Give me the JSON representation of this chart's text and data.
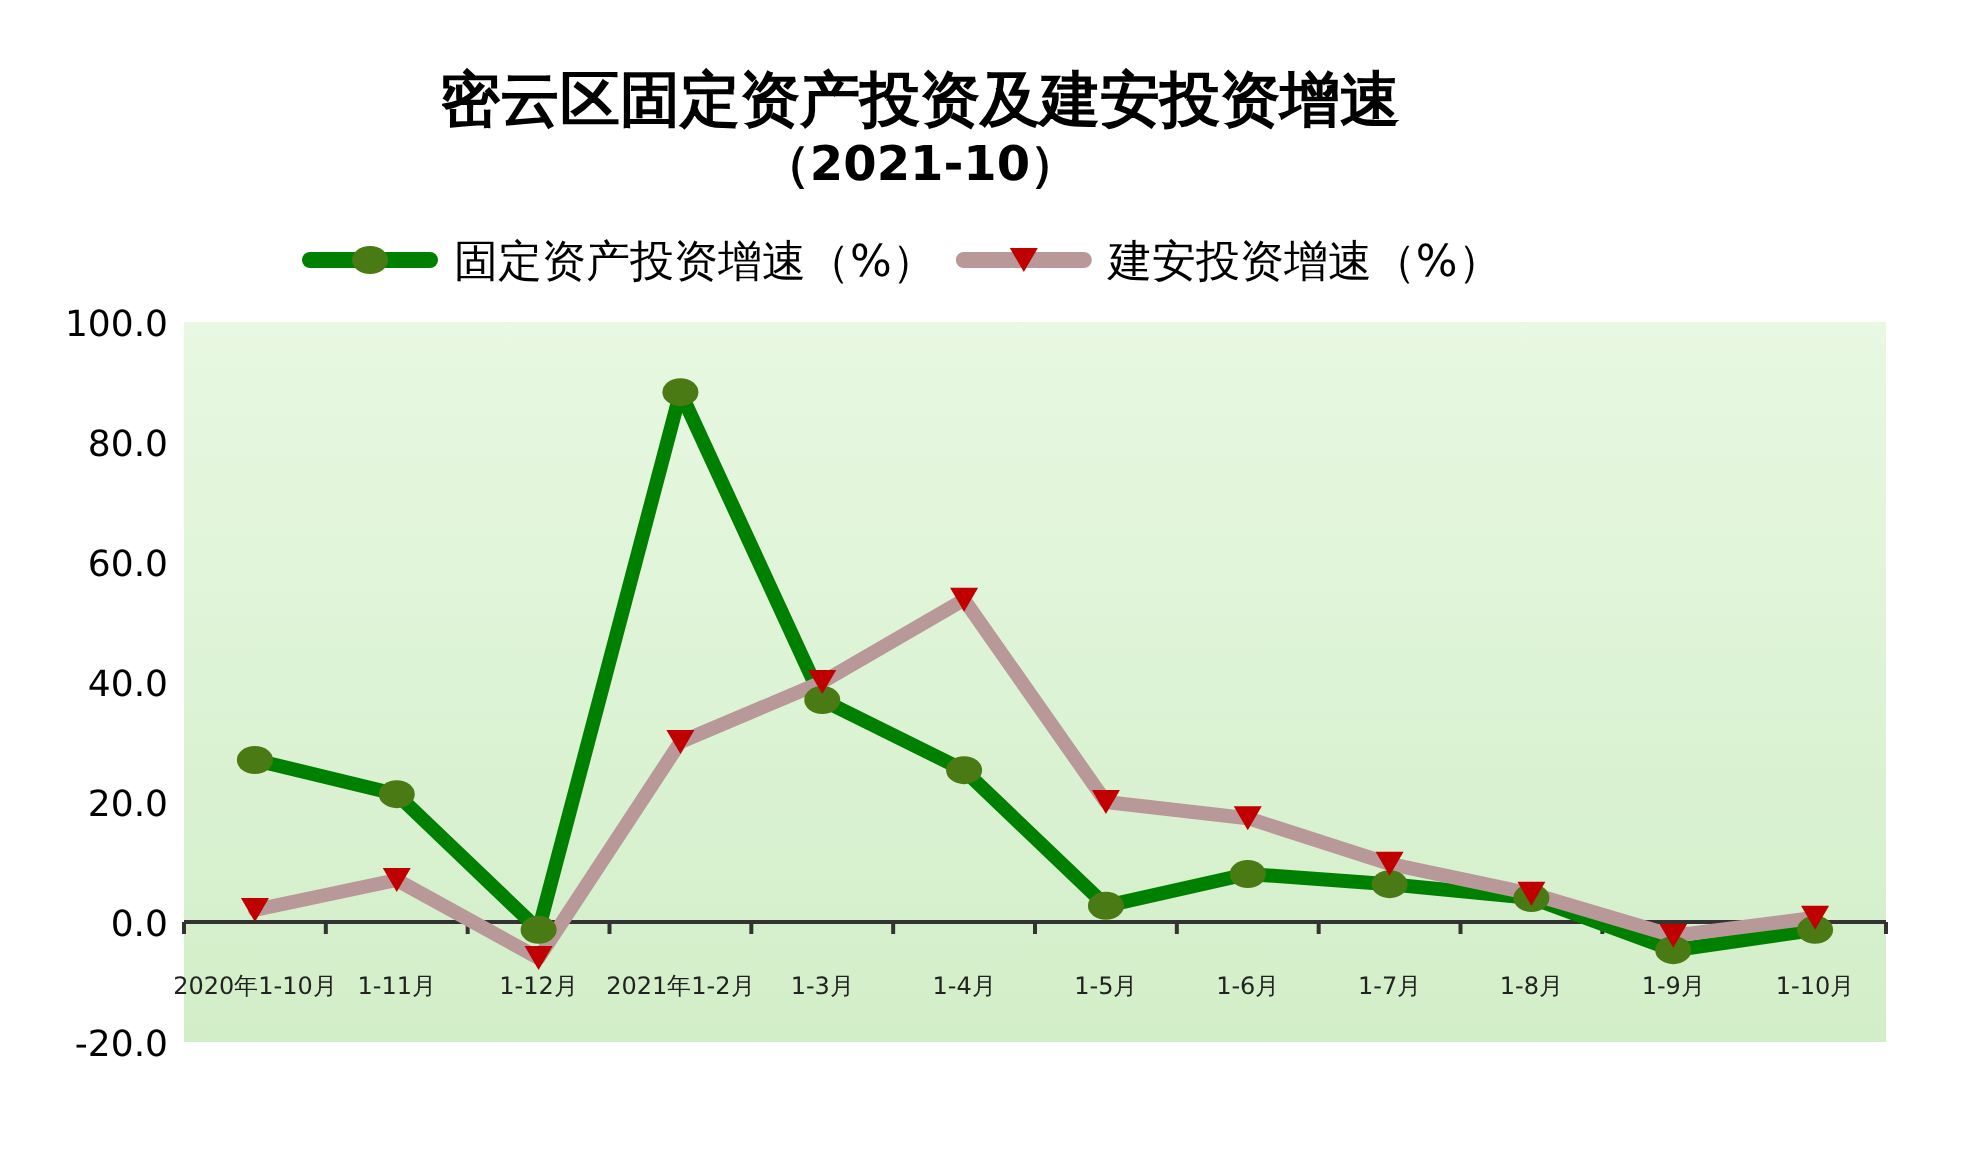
{
  "chart_data": {
    "type": "line",
    "title": "密云区固定资产投资及建安投资增速",
    "subtitle": "（2021-10）",
    "categories": [
      "2020年1-10月",
      "1-11月",
      "1-12月",
      "2021年1-2月",
      "1-3月",
      "1-4月",
      "1-5月",
      "1-6月",
      "1-7月",
      "1-8月",
      "1-9月",
      "1-10月"
    ],
    "series": [
      {
        "name": "固定资产投资增速（%）",
        "color": "#008000",
        "marker": "circle",
        "values": [
          27.0,
          21.3,
          -1.3,
          88.3,
          37.0,
          25.3,
          2.7,
          8.0,
          6.3,
          4.0,
          -4.7,
          -1.3
        ]
      },
      {
        "name": "建安投资增速（%）",
        "color": "#b89898",
        "marker": "triangle",
        "values": [
          2.0,
          7.0,
          -6.0,
          30.0,
          40.0,
          53.7,
          20.0,
          17.3,
          9.7,
          4.7,
          -2.3,
          0.7
        ]
      }
    ],
    "ylim": [
      -20,
      100
    ],
    "yticks": [
      {
        "value": -20,
        "label": "-20.0"
      },
      {
        "value": 0,
        "label": "0.0"
      },
      {
        "value": 20,
        "label": "20.0"
      },
      {
        "value": 40,
        "label": "40.0"
      },
      {
        "value": 60,
        "label": "60.0"
      },
      {
        "value": 80,
        "label": "80.0"
      },
      {
        "value": 100,
        "label": "100.0"
      }
    ],
    "legend": "top"
  }
}
